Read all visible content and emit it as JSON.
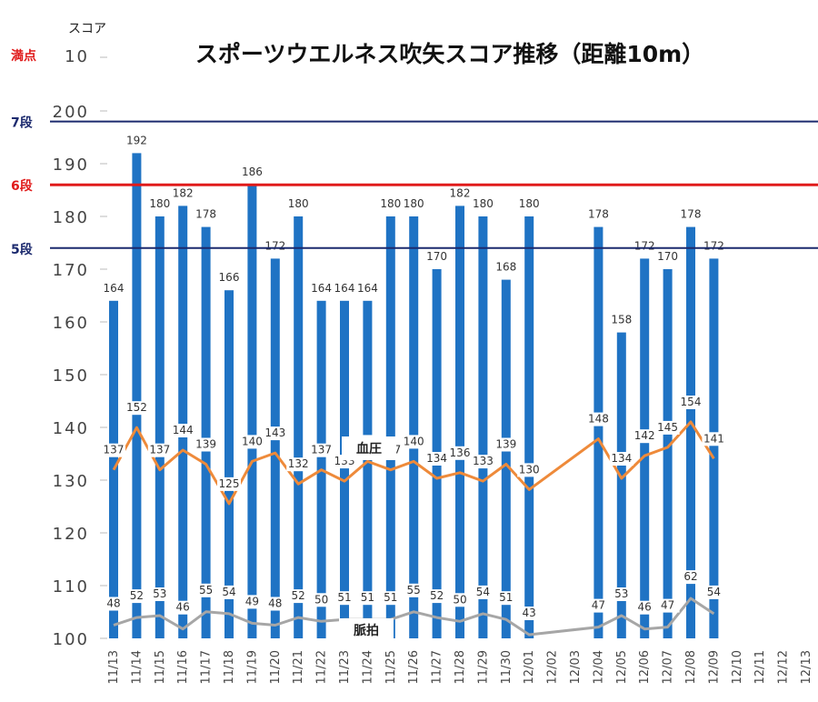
{
  "chart_data": {
    "type": "bar",
    "title": "スポーツウエルネス吹矢スコア推移（距離10m）",
    "ylabel": "スコア",
    "top_tick_label": "10",
    "top_tick_note": "満点",
    "ylim": [
      100,
      200
    ],
    "yticks": [
      100,
      110,
      120,
      130,
      140,
      150,
      160,
      170,
      180,
      190,
      200
    ],
    "categories": [
      "11/13",
      "11/14",
      "11/15",
      "11/16",
      "11/17",
      "11/18",
      "11/19",
      "11/20",
      "11/21",
      "11/22",
      "11/23",
      "11/24",
      "11/25",
      "11/26",
      "11/27",
      "11/28",
      "11/29",
      "11/30",
      "12/01",
      "12/02",
      "12/03",
      "12/04",
      "12/05",
      "12/06",
      "12/07",
      "12/08",
      "12/09",
      "12/10",
      "12/11",
      "12/12",
      "12/13"
    ],
    "series": [
      {
        "values": [
          164,
          192,
          180,
          182,
          178,
          166,
          186,
          172,
          180,
          164,
          164,
          164,
          180,
          180,
          170,
          182,
          180,
          168,
          180,
          null,
          null,
          178,
          158,
          172,
          170,
          178,
          172,
          null,
          null,
          null,
          null
        ],
        "color": "#1f73c4"
      },
      {
        "name": "血圧",
        "values": [
          137,
          152,
          137,
          144,
          139,
          125,
          140,
          143,
          132,
          137,
          133,
          140,
          137,
          140,
          134,
          136,
          133,
          139,
          130,
          null,
          null,
          148,
          134,
          142,
          145,
          154,
          141,
          null,
          null,
          null,
          null
        ],
        "color": "#ee8a3a"
      },
      {
        "name": "脈拍",
        "values": [
          48,
          52,
          53,
          46,
          55,
          54,
          49,
          48,
          52,
          50,
          51,
          51,
          51,
          55,
          52,
          50,
          54,
          51,
          43,
          null,
          null,
          47,
          53,
          46,
          47,
          62,
          54,
          null,
          null,
          null,
          null
        ],
        "color": "#a6a6a6"
      }
    ],
    "reference_lines": [
      {
        "label": "7段",
        "value": 198,
        "color": "#1c2a6e"
      },
      {
        "label": "6段",
        "value": 186,
        "color": "#e01b1b"
      },
      {
        "label": "5段",
        "value": 174,
        "color": "#1c2a6e"
      }
    ],
    "grid": false,
    "legend": "none"
  }
}
